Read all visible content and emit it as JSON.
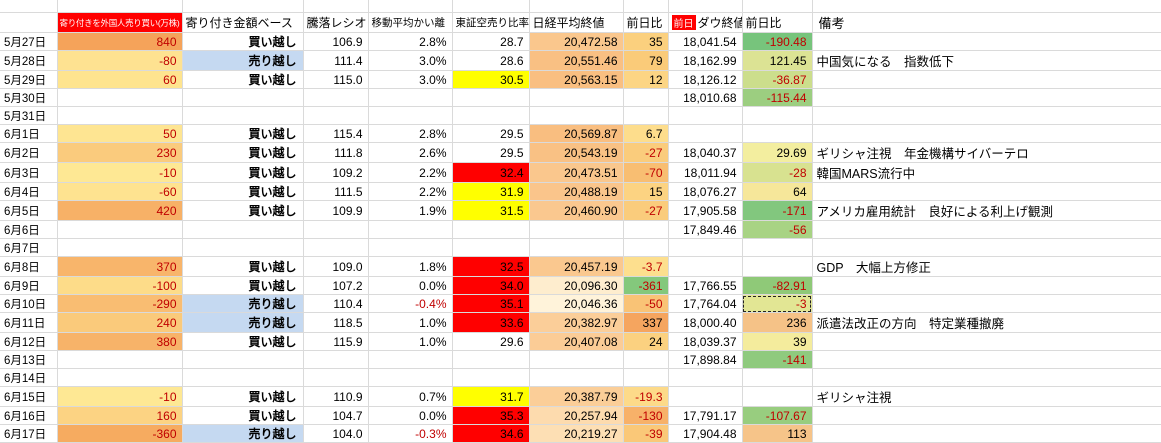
{
  "headers": {
    "date": "",
    "foreign": "寄り付きを外国人売り買い(万株)",
    "base": "寄り付き金額ベース",
    "ratio": "騰落レシオ",
    "ma": "移動平均かい離",
    "short": "東証空売り比率",
    "nikkei": "日経平均終値",
    "ndiff": "前日比",
    "prev": "前日",
    "dow": "ダウ終値",
    "ddiff": "前日比",
    "note": "備考"
  },
  "colors": {
    "header_red_bg": "#FF0000",
    "sell_blue_bg": "#C5D9F1",
    "alert_yellow": "#FFFF00",
    "alert_red": "#FF0000",
    "negative_text": "#C00000",
    "gridline": "#DADADA"
  },
  "rows": [
    {
      "date": "5月27日",
      "foreign": "840",
      "foreign_bg": "#F5A35A",
      "base": "買い越し",
      "base_bg": "",
      "ratio": "106.9",
      "ma": "2.8%",
      "short": "28.7",
      "short_bg": "",
      "nikkei": "20,472.58",
      "nikkei_bg": "#FAC78D",
      "ndiff": "35",
      "ndiff_bg": "#FBD07E",
      "dow": "18,041.54",
      "ddiff": "-190.48",
      "ddiff_bg": "#77C47C",
      "note": ""
    },
    {
      "date": "5月28日",
      "foreign": "-80",
      "foreign_bg": "#FEE291",
      "base": "売り越し",
      "base_bg": "#C5D9F1",
      "ratio": "111.4",
      "ma": "3.0%",
      "short": "28.6",
      "short_bg": "",
      "nikkei": "20,551.46",
      "nikkei_bg": "#F9C083",
      "ndiff": "79",
      "ndiff_bg": "#FACB79",
      "dow": "18,162.99",
      "ddiff": "121.45",
      "ddiff_bg": "#DCE394",
      "note": "中国気になる　指数低下"
    },
    {
      "date": "5月29日",
      "foreign": "60",
      "foreign_bg": "#FEE48F",
      "base": "買い越し",
      "base_bg": "",
      "ratio": "115.0",
      "ma": "3.0%",
      "short": "30.5",
      "short_bg": "#FFFF00",
      "nikkei": "20,563.15",
      "nikkei_bg": "#F9BF81",
      "ndiff": "12",
      "ndiff_bg": "#FCD584",
      "dow": "18,126.12",
      "ddiff": "-36.87",
      "ddiff_bg": "#CCDE8C",
      "note": ""
    },
    {
      "date": "5月30日",
      "dow": "18,010.68",
      "ddiff": "-115.44",
      "ddiff_bg": "#9CCE80"
    },
    {
      "date": "5月31日"
    },
    {
      "date": "6月1日",
      "foreign": "50",
      "foreign_bg": "#FEE592",
      "base": "買い越し",
      "ratio": "115.4",
      "ma": "2.8%",
      "short": "29.5",
      "nikkei": "20,569.87",
      "nikkei_bg": "#F9BE80",
      "ndiff": "6.7",
      "ndiff_bg": "#FDDD8C"
    },
    {
      "date": "6月2日",
      "foreign": "230",
      "foreign_bg": "#FACB7D",
      "base": "買い越し",
      "ratio": "111.8",
      "ma": "2.6%",
      "short": "29.5",
      "nikkei": "20,543.19",
      "nikkei_bg": "#F9C184",
      "ndiff": "-27",
      "ndiff_bg": "#FACC7C",
      "dow": "18,040.37",
      "ddiff": "29.69",
      "ddiff_bg": "#F3EE9F",
      "note": "ギリシャ注視　年金機構サイバーテロ"
    },
    {
      "date": "6月3日",
      "foreign": "-10",
      "foreign_bg": "#FEE894",
      "base": "買い越し",
      "ratio": "109.2",
      "ma": "2.2%",
      "short": "32.4",
      "short_bg": "#FF0000",
      "nikkei": "20,473.51",
      "nikkei_bg": "#FAC78D",
      "ndiff": "-70",
      "ndiff_bg": "#F8BE72",
      "dow": "18,011.94",
      "ddiff": "-28",
      "ddiff_bg": "#D8E290",
      "note": "韓国MARS流行中"
    },
    {
      "date": "6月4日",
      "foreign": "-60",
      "foreign_bg": "#FEE390",
      "base": "買い越し",
      "ratio": "111.5",
      "ma": "2.2%",
      "short": "31.9",
      "short_bg": "#FFFF00",
      "nikkei": "20,488.19",
      "nikkei_bg": "#FAC58B",
      "ndiff": "15",
      "ndiff_bg": "#FCD382",
      "dow": "18,076.27",
      "ddiff": "64",
      "ddiff_bg": "#F6E79A"
    },
    {
      "date": "6月5日",
      "foreign": "420",
      "foreign_bg": "#F7B167",
      "base": "買い越し",
      "ratio": "109.9",
      "ma": "1.9%",
      "short": "31.5",
      "short_bg": "#FFFF00",
      "nikkei": "20,460.90",
      "nikkei_bg": "#FAC88F",
      "ndiff": "-27",
      "ndiff_bg": "#FACC7C",
      "dow": "17,905.58",
      "ddiff": "-171",
      "ddiff_bg": "#82C77E",
      "note": "アメリカ雇用統計　良好による利上げ観測"
    },
    {
      "date": "6月6日",
      "dow": "17,849.46",
      "ddiff": "-56",
      "ddiff_bg": "#A8D384"
    },
    {
      "date": "6月7日"
    },
    {
      "date": "6月8日",
      "foreign": "370",
      "foreign_bg": "#F8B56B",
      "base": "買い越し",
      "ratio": "109.0",
      "ma": "1.8%",
      "short": "32.5",
      "short_bg": "#FF0000",
      "nikkei": "20,457.19",
      "nikkei_bg": "#FAC88F",
      "ndiff": "-3.7",
      "ndiff_bg": "#FDDF8E",
      "note": "GDP　大幅上方修正"
    },
    {
      "date": "6月9日",
      "foreign": "-100",
      "foreign_bg": "#FDDC89",
      "base": "買い越し",
      "ratio": "107.2",
      "ma": "0.0%",
      "short": "34.0",
      "short_bg": "#FF0000",
      "nikkei": "20,096.30",
      "nikkei_bg": "#FEEDCE",
      "ndiff": "-361",
      "ndiff_bg": "#84C87C",
      "dow": "17,766.55",
      "ddiff": "-82.91",
      "ddiff_bg": "#8FC978"
    },
    {
      "date": "6月10日",
      "foreign": "-290",
      "foreign_bg": "#F9BD72",
      "base": "売り越し",
      "base_bg": "#C5D9F1",
      "ratio": "110.4",
      "ma": "-0.4%",
      "short": "35.1",
      "short_bg": "#FF0000",
      "nikkei": "20,046.36",
      "nikkei_bg": "#FFF3DA",
      "ndiff": "-50",
      "ndiff_bg": "#F9C376",
      "dow": "17,764.04",
      "ddiff": "-3",
      "ddiff_bg": "#E2E694",
      "copied": true
    },
    {
      "date": "6月11日",
      "foreign": "240",
      "foreign_bg": "#FACA7B",
      "base": "売り越し",
      "base_bg": "#C5D9F1",
      "ratio": "118.5",
      "ma": "1.0%",
      "short": "33.6",
      "short_bg": "#FF0000",
      "nikkei": "20,382.97",
      "nikkei_bg": "#FBCE99",
      "ndiff": "337",
      "ndiff_bg": "#F5A55F",
      "dow": "18,000.40",
      "ddiff": "236",
      "ddiff_bg": "#F5C287",
      "note": "派遣法改正の方向　特定業種撤廃"
    },
    {
      "date": "6月12日",
      "foreign": "380",
      "foreign_bg": "#F7B369",
      "base": "買い越し",
      "ratio": "115.9",
      "ma": "1.0%",
      "short": "29.6",
      "nikkei": "20,407.08",
      "nikkei_bg": "#FBCC96",
      "ndiff": "24",
      "ndiff_bg": "#FBD180",
      "dow": "18,039.37",
      "ddiff": "39",
      "ddiff_bg": "#F4EC9D"
    },
    {
      "date": "6月13日",
      "dow": "17,898.84",
      "ddiff": "-141",
      "ddiff_bg": "#8FCA7E"
    },
    {
      "date": "6月14日"
    },
    {
      "date": "6月15日",
      "foreign": "-10",
      "foreign_bg": "#FEE894",
      "base": "買い越し",
      "ratio": "110.9",
      "ma": "0.7%",
      "short": "31.7",
      "short_bg": "#FFFF00",
      "nikkei": "20,387.79",
      "nikkei_bg": "#FBCE98",
      "ndiff": "-19.3",
      "ndiff_bg": "#FDDA89",
      "note": "ギリシャ注視"
    },
    {
      "date": "6月16日",
      "foreign": "160",
      "foreign_bg": "#FCD383",
      "base": "買い越し",
      "ratio": "104.7",
      "ma": "0.0%",
      "short": "35.3",
      "short_bg": "#FF0000",
      "nikkei": "20,257.94",
      "nikkei_bg": "#FDDBAE",
      "ndiff": "-130",
      "ndiff_bg": "#F7B169",
      "dow": "17,791.17",
      "ddiff": "-107.67",
      "ddiff_bg": "#98CD7F"
    },
    {
      "date": "6月17日",
      "foreign": "-360",
      "foreign_bg": "#F6AB60",
      "base": "売り越し",
      "base_bg": "#C5D9F1",
      "ratio": "104.0",
      "ma": "-0.3%",
      "short": "34.6",
      "short_bg": "#FF0000",
      "nikkei": "20,219.27",
      "nikkei_bg": "#FDDFB4",
      "ndiff": "-39",
      "ndiff_bg": "#FAC878",
      "dow": "17,904.48",
      "ddiff": "113",
      "ddiff_bg": "#F6C489"
    }
  ]
}
